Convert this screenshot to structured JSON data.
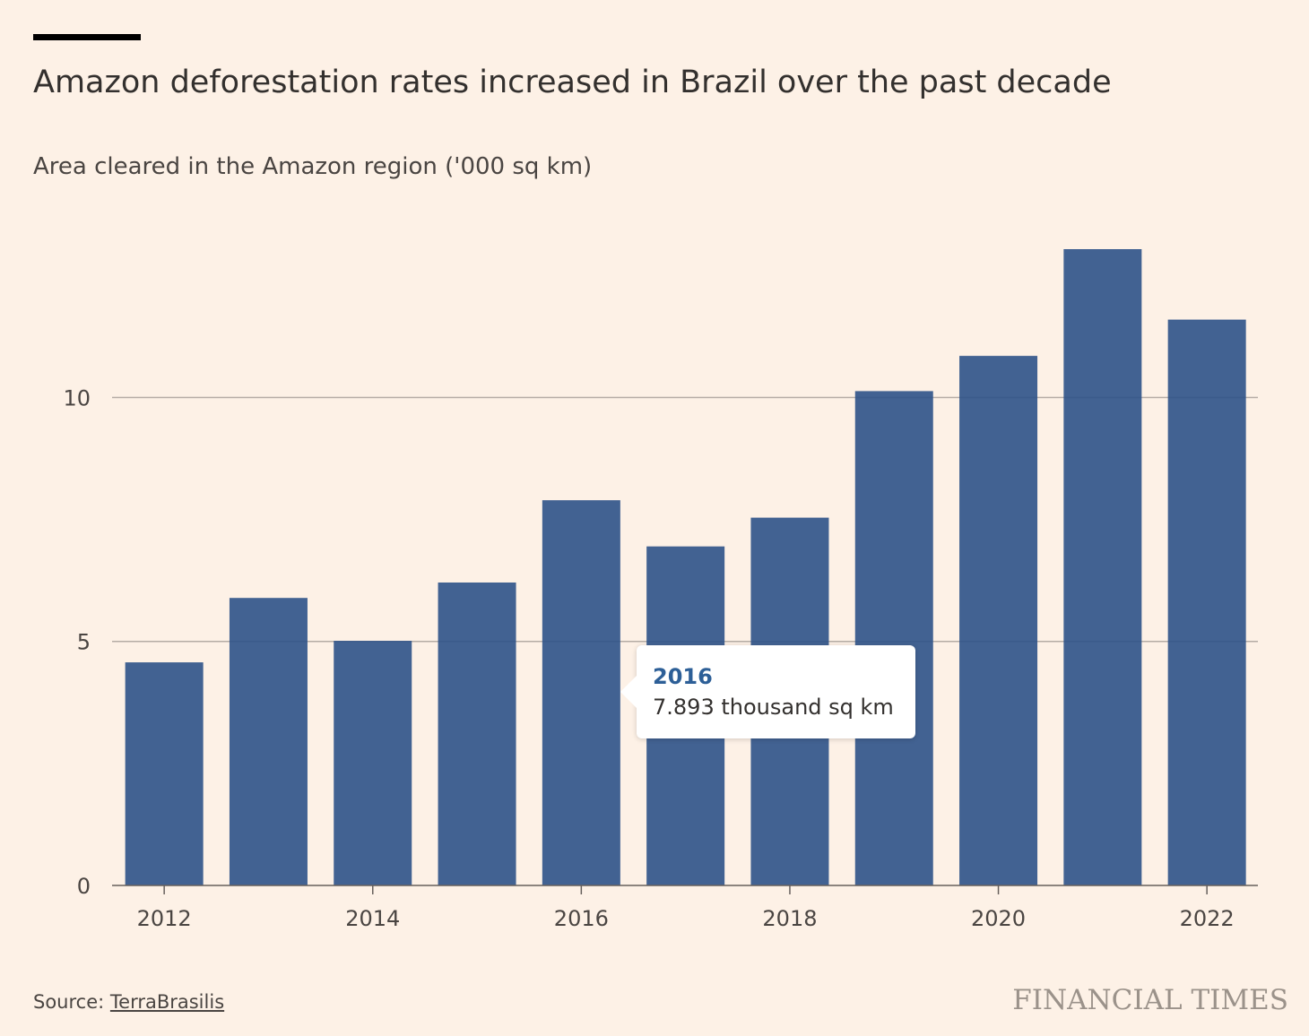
{
  "title": "Amazon deforestation rates increased in Brazil over the past decade",
  "subtitle": "Area cleared in the Amazon region ('000 sq km)",
  "tooltip": {
    "year": "2016",
    "value_text": "7.893 thousand sq km"
  },
  "source": {
    "prefix": "Source: ",
    "link_text": "TerraBrasilis"
  },
  "brand": "FINANCIAL TIMES",
  "colors": {
    "background": "#fdf1e6",
    "bar": "#2e5288",
    "gridline": "#b5aca5",
    "text": "#33302e",
    "tooltip_year": "#2d5f97"
  },
  "chart_data": {
    "type": "bar",
    "categories": [
      "2012",
      "2013",
      "2014",
      "2015",
      "2016",
      "2017",
      "2018",
      "2019",
      "2020",
      "2021",
      "2022"
    ],
    "values": [
      4.571,
      5.891,
      5.012,
      6.207,
      7.893,
      6.947,
      7.536,
      10.129,
      10.851,
      13.038,
      11.594
    ],
    "title": "Amazon deforestation rates increased in Brazil over the past decade",
    "subtitle": "Area cleared in the Amazon region ('000 sq km)",
    "xlabel": "",
    "ylabel": "",
    "ylim": [
      0,
      13.038
    ],
    "yticks": [
      0,
      5,
      10
    ],
    "xtick_labels": [
      "2012",
      "2014",
      "2016",
      "2018",
      "2020",
      "2022"
    ],
    "grid": true,
    "legend": "none"
  }
}
